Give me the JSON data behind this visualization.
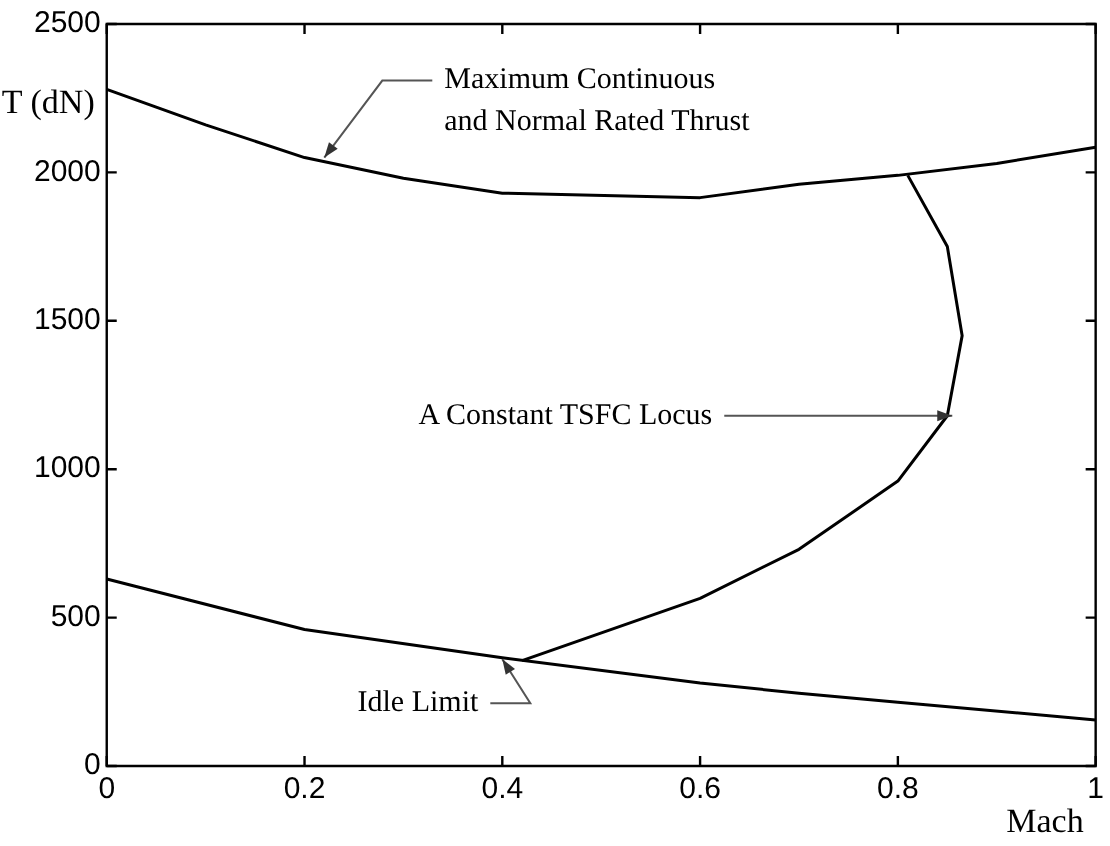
{
  "chart_data": {
    "type": "line",
    "xlabel": "Mach",
    "ylabel": "T (dN)",
    "xlim": [
      0,
      1
    ],
    "xticks": [
      0,
      0.2,
      0.4,
      0.6,
      0.8,
      1
    ],
    "ylim": [
      0,
      2500
    ],
    "yticks": [
      0,
      500,
      1000,
      1500,
      2000,
      2500
    ],
    "grid": false,
    "legend": false,
    "marker": "none",
    "line_style": "solid",
    "series": [
      {
        "color": "#000000",
        "x": [
          0,
          0.1,
          0.2,
          0.3,
          0.4,
          0.6,
          0.7,
          0.8,
          0.9,
          1.0
        ],
        "values": [
          2280,
          2160,
          2050,
          1980,
          1930,
          1915,
          1960,
          1990,
          2030,
          2085
        ]
      },
      {
        "color": "#000000",
        "x": [
          0,
          0.2,
          0.4,
          0.6,
          0.7,
          0.8,
          1.0
        ],
        "values": [
          630,
          460,
          365,
          280,
          245,
          215,
          155
        ]
      },
      {
        "color": "#000000",
        "x": [
          0.42,
          0.6,
          0.7,
          0.8,
          0.85,
          0.865,
          0.85,
          0.81
        ],
        "values": [
          355,
          565,
          730,
          960,
          1180,
          1450,
          1750,
          1990
        ]
      }
    ],
    "annotations": [
      {
        "text": "Maximum Continuous\nand Normal Rated Thrust",
        "x": 0.22,
        "y": 2050
      },
      {
        "text": "A Constant TSFC Locus",
        "x": 0.855,
        "y": 1180
      },
      {
        "text": "Idle Limit",
        "x": 0.4,
        "y": 360
      }
    ]
  }
}
